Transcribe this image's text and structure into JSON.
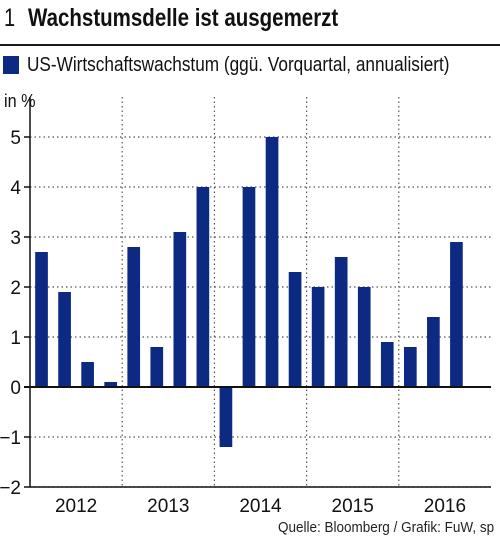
{
  "figure_number": "1",
  "title": "Wachstumsdelle ist ausgemerzt",
  "source": "Quelle: Bloomberg / Grafik: FuW, sp",
  "colors": {
    "bar": "#0d2a82",
    "axis": "#111111",
    "grid": "#555555"
  },
  "chart_data": {
    "type": "bar",
    "title": "Wachstumsdelle ist ausgemerzt",
    "unit_label": "in %",
    "ylabel": "",
    "xlabel": "",
    "ylim": [
      -2,
      5
    ],
    "yticks": [
      5,
      4,
      3,
      2,
      1,
      0,
      -1,
      -2
    ],
    "grid": true,
    "legend_position": "top-left",
    "year_labels": [
      "2012",
      "2013",
      "2014",
      "2015",
      "2016"
    ],
    "series": [
      {
        "name": "US-Wirtschaftswachstum (ggü. Vorquartal, annualisiert)",
        "values": [
          2.7,
          1.9,
          0.5,
          0.1,
          2.8,
          0.8,
          3.1,
          4.0,
          -1.2,
          4.0,
          5.0,
          2.3,
          2.0,
          2.6,
          2.0,
          0.9,
          0.8,
          1.4,
          2.9
        ]
      }
    ]
  }
}
